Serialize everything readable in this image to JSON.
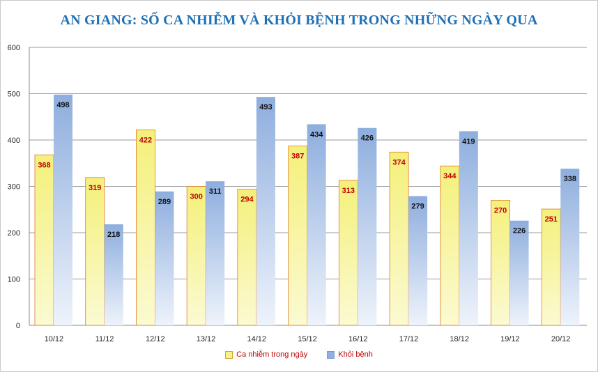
{
  "chart_data": {
    "type": "bar",
    "title": "AN GIANG: SỐ CA NHIỄM VÀ KHỎI BỆNH TRONG NHỮNG NGÀY QUA",
    "categories": [
      "10/12",
      "11/12",
      "12/12",
      "13/12",
      "14/12",
      "15/12",
      "16/12",
      "17/12",
      "18/12",
      "19/12",
      "20/12"
    ],
    "series": [
      {
        "name": "Ca nhiễm trong ngày",
        "values": [
          368,
          319,
          422,
          300,
          294,
          387,
          313,
          374,
          344,
          270,
          251
        ],
        "color": "#f6f38a",
        "border": "#e07828",
        "label_color": "#c00000"
      },
      {
        "name": "Khỏi bệnh",
        "values": [
          498,
          218,
          289,
          311,
          493,
          434,
          426,
          279,
          419,
          226,
          338
        ],
        "color": "#8fb0df",
        "border": "#8fb0df",
        "label_color": "#111111"
      }
    ],
    "ylim": [
      0,
      600
    ],
    "yticks": [
      0,
      100,
      200,
      300,
      400,
      500,
      600
    ],
    "grid": true,
    "legend": "bottom"
  }
}
